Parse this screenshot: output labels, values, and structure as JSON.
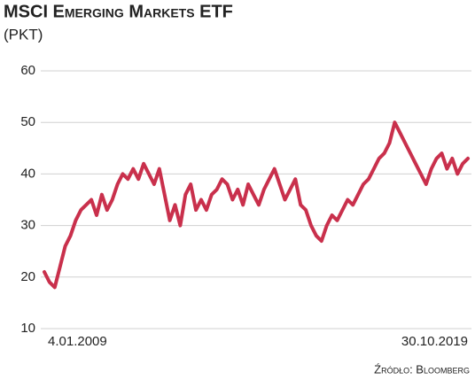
{
  "chart_data": {
    "type": "line",
    "title": "MSCI Emerging Markets ETF",
    "subtitle": "(PKT)",
    "source": "Źródło: Bloomberg",
    "categories": [
      "4.01.2009",
      null,
      null,
      null,
      null,
      null,
      null,
      null,
      null,
      null,
      null,
      null,
      null,
      null,
      null,
      null,
      null,
      null,
      null,
      null,
      null,
      null,
      null,
      null,
      null,
      null,
      null,
      null,
      null,
      null,
      null,
      null,
      null,
      null,
      null,
      null,
      null,
      null,
      null,
      null,
      null,
      null,
      null,
      null,
      null,
      null,
      null,
      null,
      null,
      null,
      null,
      null,
      null,
      null,
      null,
      null,
      null,
      null,
      null,
      null,
      null,
      null,
      null,
      null,
      null,
      null,
      null,
      null,
      null,
      null,
      null,
      null,
      null,
      null,
      null,
      null,
      null,
      null,
      null,
      null,
      null,
      "30.10.2019"
    ],
    "values": [
      21,
      19,
      18,
      22,
      26,
      28,
      31,
      33,
      34,
      35,
      32,
      36,
      33,
      35,
      38,
      40,
      39,
      41,
      39,
      42,
      40,
      38,
      41,
      36,
      31,
      34,
      30,
      36,
      38,
      33,
      35,
      33,
      36,
      37,
      39,
      38,
      35,
      37,
      34,
      38,
      36,
      34,
      37,
      39,
      41,
      38,
      35,
      37,
      39,
      34,
      33,
      30,
      28,
      27,
      30,
      32,
      31,
      33,
      35,
      34,
      36,
      38,
      39,
      41,
      43,
      44,
      46,
      50,
      48,
      46,
      44,
      42,
      40,
      38,
      41,
      43,
      44,
      41,
      43,
      40,
      42,
      43
    ],
    "color": "#c9304c",
    "ylim": [
      10,
      60
    ],
    "yticks": [
      10,
      20,
      30,
      40,
      50,
      60
    ],
    "grid": true
  }
}
